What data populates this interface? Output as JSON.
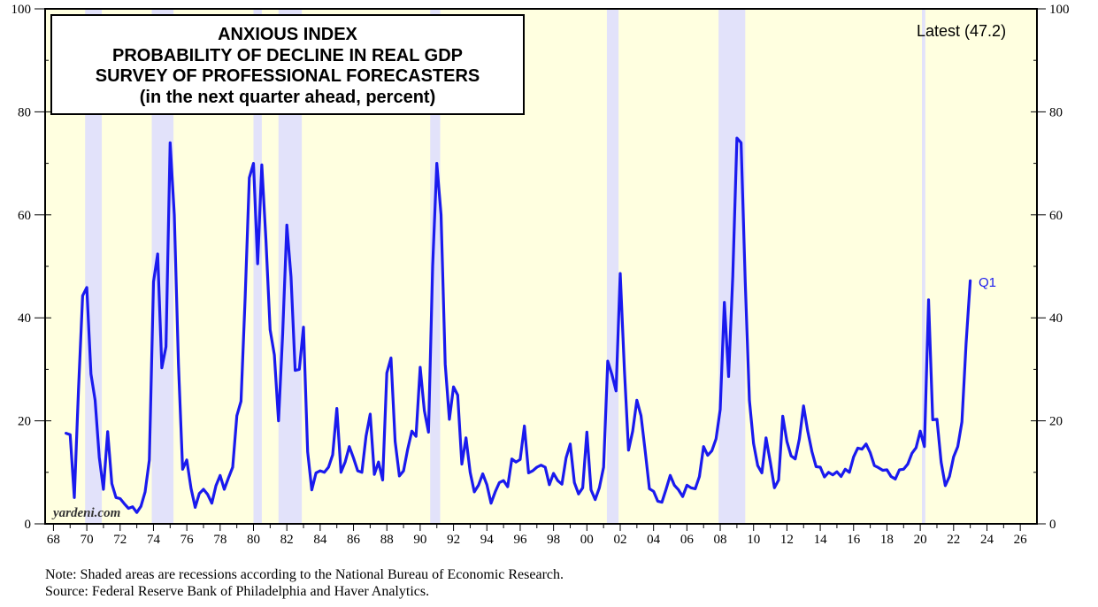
{
  "chart_data": {
    "type": "line",
    "title": [
      "ANXIOUS INDEX",
      "PROBABILITY OF DECLINE IN REAL GDP",
      "SURVEY OF PROFESSIONAL FORECASTERS",
      "(in the next quarter ahead, percent)"
    ],
    "latest_label": "Latest (47.2)",
    "end_label": "Q1",
    "watermark": "yardeni.com",
    "note": "Note: Shaded areas are recessions according to the National Bureau of Economic Research.",
    "source": "Source: Federal Reserve Bank of Philadelphia and Haver Analytics.",
    "xlim": [
      1967.5,
      2027
    ],
    "ylim": [
      0,
      100
    ],
    "x_ticks": [
      "68",
      "70",
      "72",
      "74",
      "76",
      "78",
      "80",
      "82",
      "84",
      "86",
      "88",
      "90",
      "92",
      "94",
      "96",
      "98",
      "00",
      "02",
      "04",
      "06",
      "08",
      "10",
      "12",
      "14",
      "16",
      "18",
      "20",
      "22",
      "24",
      "26"
    ],
    "y_ticks": [
      "0",
      "20",
      "40",
      "60",
      "80",
      "100"
    ],
    "colors": {
      "line": "#1a1aee",
      "plot_bg": "#ffffe0",
      "recession": "#e2e2fa",
      "end_label": "#1a1aee"
    },
    "recessions": [
      [
        1969.9,
        1970.9
      ],
      [
        1973.9,
        1975.2
      ],
      [
        1980.0,
        1980.5
      ],
      [
        1981.5,
        1982.9
      ],
      [
        1990.6,
        1991.2
      ],
      [
        2001.2,
        2001.9
      ],
      [
        2007.9,
        2009.5
      ],
      [
        2020.1,
        2020.3
      ]
    ],
    "series": [
      {
        "name": "Probability of decline in real GDP",
        "points": [
          [
            1968.75,
            17.6
          ],
          [
            1969.0,
            17.3
          ],
          [
            1969.25,
            5.1
          ],
          [
            1969.5,
            26.0
          ],
          [
            1969.75,
            44.3
          ],
          [
            1970.0,
            45.9
          ],
          [
            1970.25,
            29.1
          ],
          [
            1970.5,
            24.0
          ],
          [
            1970.75,
            12.9
          ],
          [
            1971.0,
            6.7
          ],
          [
            1971.25,
            17.9
          ],
          [
            1971.5,
            7.8
          ],
          [
            1971.75,
            5.1
          ],
          [
            1972.0,
            4.9
          ],
          [
            1972.25,
            3.9
          ],
          [
            1972.5,
            3.0
          ],
          [
            1972.75,
            3.3
          ],
          [
            1973.0,
            2.2
          ],
          [
            1973.25,
            3.4
          ],
          [
            1973.5,
            6.2
          ],
          [
            1973.75,
            12.4
          ],
          [
            1974.0,
            47.0
          ],
          [
            1974.25,
            52.4
          ],
          [
            1974.5,
            30.3
          ],
          [
            1974.75,
            34.4
          ],
          [
            1975.0,
            74.0
          ],
          [
            1975.25,
            60.0
          ],
          [
            1975.5,
            31.0
          ],
          [
            1975.75,
            10.6
          ],
          [
            1976.0,
            12.4
          ],
          [
            1976.25,
            6.9
          ],
          [
            1976.5,
            3.2
          ],
          [
            1976.75,
            5.9
          ],
          [
            1977.0,
            6.7
          ],
          [
            1977.25,
            5.7
          ],
          [
            1977.5,
            4.0
          ],
          [
            1977.75,
            7.4
          ],
          [
            1978.0,
            9.4
          ],
          [
            1978.25,
            6.7
          ],
          [
            1978.5,
            8.9
          ],
          [
            1978.75,
            11.0
          ],
          [
            1979.0,
            21.0
          ],
          [
            1979.25,
            23.8
          ],
          [
            1979.5,
            44.0
          ],
          [
            1979.75,
            67.2
          ],
          [
            1980.0,
            70.0
          ],
          [
            1980.25,
            50.5
          ],
          [
            1980.5,
            69.7
          ],
          [
            1980.75,
            55.0
          ],
          [
            1981.0,
            37.7
          ],
          [
            1981.25,
            32.8
          ],
          [
            1981.5,
            20.0
          ],
          [
            1981.75,
            37.0
          ],
          [
            1982.0,
            58.0
          ],
          [
            1982.25,
            48.0
          ],
          [
            1982.5,
            29.8
          ],
          [
            1982.75,
            30.0
          ],
          [
            1983.0,
            38.2
          ],
          [
            1983.25,
            14.0
          ],
          [
            1983.5,
            6.6
          ],
          [
            1983.75,
            9.9
          ],
          [
            1984.0,
            10.3
          ],
          [
            1984.25,
            10.0
          ],
          [
            1984.5,
            11.0
          ],
          [
            1984.75,
            13.4
          ],
          [
            1985.0,
            22.4
          ],
          [
            1985.25,
            10.0
          ],
          [
            1985.5,
            12.0
          ],
          [
            1985.75,
            15.0
          ],
          [
            1986.0,
            12.8
          ],
          [
            1986.25,
            10.3
          ],
          [
            1986.5,
            10.0
          ],
          [
            1986.75,
            17.0
          ],
          [
            1987.0,
            21.3
          ],
          [
            1987.25,
            9.6
          ],
          [
            1987.5,
            12.0
          ],
          [
            1987.75,
            8.5
          ],
          [
            1988.0,
            29.3
          ],
          [
            1988.25,
            32.2
          ],
          [
            1988.5,
            16.0
          ],
          [
            1988.75,
            9.3
          ],
          [
            1989.0,
            10.3
          ],
          [
            1989.25,
            14.5
          ],
          [
            1989.5,
            18.0
          ],
          [
            1989.75,
            17.0
          ],
          [
            1990.0,
            30.4
          ],
          [
            1990.25,
            22.0
          ],
          [
            1990.5,
            17.8
          ],
          [
            1990.75,
            50.0
          ],
          [
            1991.0,
            70.0
          ],
          [
            1991.25,
            60.0
          ],
          [
            1991.5,
            31.0
          ],
          [
            1991.75,
            20.3
          ],
          [
            1992.0,
            26.6
          ],
          [
            1992.25,
            25.0
          ],
          [
            1992.5,
            11.6
          ],
          [
            1992.75,
            16.7
          ],
          [
            1993.0,
            10.0
          ],
          [
            1993.25,
            6.2
          ],
          [
            1993.5,
            7.5
          ],
          [
            1993.75,
            9.7
          ],
          [
            1994.0,
            7.6
          ],
          [
            1994.25,
            4.0
          ],
          [
            1994.5,
            6.2
          ],
          [
            1994.75,
            8.0
          ],
          [
            1995.0,
            8.4
          ],
          [
            1995.25,
            7.2
          ],
          [
            1995.5,
            12.6
          ],
          [
            1995.75,
            12.0
          ],
          [
            1996.0,
            12.5
          ],
          [
            1996.25,
            19.0
          ],
          [
            1996.5,
            9.9
          ],
          [
            1996.75,
            10.3
          ],
          [
            1997.0,
            11.0
          ],
          [
            1997.25,
            11.4
          ],
          [
            1997.5,
            11.0
          ],
          [
            1997.75,
            7.6
          ],
          [
            1998.0,
            9.8
          ],
          [
            1998.25,
            8.4
          ],
          [
            1998.5,
            7.7
          ],
          [
            1998.75,
            12.8
          ],
          [
            1999.0,
            15.5
          ],
          [
            1999.25,
            8.0
          ],
          [
            1999.5,
            5.8
          ],
          [
            1999.75,
            7.0
          ],
          [
            2000.0,
            17.8
          ],
          [
            2000.25,
            6.6
          ],
          [
            2000.5,
            4.7
          ],
          [
            2000.75,
            7.0
          ],
          [
            2001.0,
            11.0
          ],
          [
            2001.25,
            31.6
          ],
          [
            2001.5,
            29.0
          ],
          [
            2001.75,
            25.8
          ],
          [
            2002.0,
            48.6
          ],
          [
            2002.25,
            30.0
          ],
          [
            2002.5,
            14.3
          ],
          [
            2002.75,
            18.0
          ],
          [
            2003.0,
            24.0
          ],
          [
            2003.25,
            21.0
          ],
          [
            2003.5,
            14.0
          ],
          [
            2003.75,
            6.8
          ],
          [
            2004.0,
            6.3
          ],
          [
            2004.25,
            4.4
          ],
          [
            2004.5,
            4.2
          ],
          [
            2004.75,
            6.7
          ],
          [
            2005.0,
            9.4
          ],
          [
            2005.25,
            7.5
          ],
          [
            2005.5,
            6.6
          ],
          [
            2005.75,
            5.3
          ],
          [
            2006.0,
            7.5
          ],
          [
            2006.25,
            7.0
          ],
          [
            2006.5,
            6.8
          ],
          [
            2006.75,
            9.2
          ],
          [
            2007.0,
            15.0
          ],
          [
            2007.25,
            13.3
          ],
          [
            2007.5,
            14.2
          ],
          [
            2007.75,
            16.5
          ],
          [
            2008.0,
            22.2
          ],
          [
            2008.25,
            43.0
          ],
          [
            2008.5,
            28.6
          ],
          [
            2008.75,
            48.0
          ],
          [
            2009.0,
            74.9
          ],
          [
            2009.25,
            74.0
          ],
          [
            2009.5,
            47.0
          ],
          [
            2009.75,
            24.0
          ],
          [
            2010.0,
            15.6
          ],
          [
            2010.25,
            11.3
          ],
          [
            2010.5,
            9.9
          ],
          [
            2010.75,
            16.7
          ],
          [
            2011.0,
            12.0
          ],
          [
            2011.25,
            7.0
          ],
          [
            2011.5,
            8.5
          ],
          [
            2011.75,
            20.9
          ],
          [
            2012.0,
            16.0
          ],
          [
            2012.25,
            13.2
          ],
          [
            2012.5,
            12.6
          ],
          [
            2012.75,
            16.5
          ],
          [
            2013.0,
            22.9
          ],
          [
            2013.25,
            18.0
          ],
          [
            2013.5,
            14.0
          ],
          [
            2013.75,
            11.1
          ],
          [
            2014.0,
            11.0
          ],
          [
            2014.25,
            9.1
          ],
          [
            2014.5,
            10.0
          ],
          [
            2014.75,
            9.5
          ],
          [
            2015.0,
            10.1
          ],
          [
            2015.25,
            9.2
          ],
          [
            2015.5,
            10.6
          ],
          [
            2015.75,
            10.0
          ],
          [
            2016.0,
            13.0
          ],
          [
            2016.25,
            14.7
          ],
          [
            2016.5,
            14.5
          ],
          [
            2016.75,
            15.5
          ],
          [
            2017.0,
            13.8
          ],
          [
            2017.25,
            11.3
          ],
          [
            2017.5,
            10.9
          ],
          [
            2017.75,
            10.4
          ],
          [
            2018.0,
            10.5
          ],
          [
            2018.25,
            9.2
          ],
          [
            2018.5,
            8.7
          ],
          [
            2018.75,
            10.5
          ],
          [
            2019.0,
            10.6
          ],
          [
            2019.25,
            11.6
          ],
          [
            2019.5,
            13.7
          ],
          [
            2019.75,
            14.8
          ],
          [
            2020.0,
            18.0
          ],
          [
            2020.25,
            15.0
          ],
          [
            2020.5,
            43.5
          ],
          [
            2020.75,
            20.2
          ],
          [
            2021.0,
            20.3
          ],
          [
            2021.25,
            12.0
          ],
          [
            2021.5,
            7.4
          ],
          [
            2021.75,
            9.2
          ],
          [
            2022.0,
            13.0
          ],
          [
            2022.25,
            15.0
          ],
          [
            2022.5,
            19.8
          ],
          [
            2022.75,
            35.0
          ],
          [
            2023.0,
            47.2
          ]
        ]
      }
    ]
  }
}
